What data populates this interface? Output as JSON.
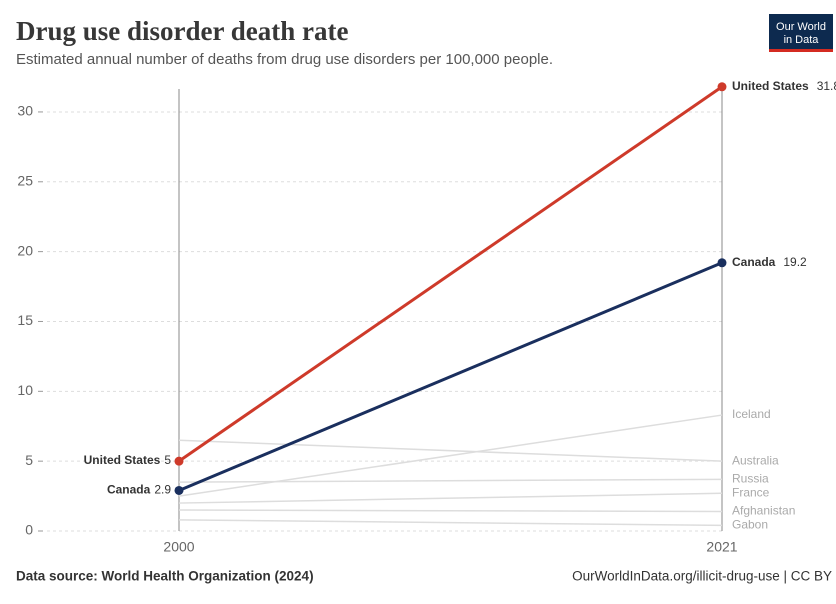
{
  "chart_data": {
    "type": "slope",
    "title": "Drug use disorder death rate",
    "subtitle": "Estimated annual number of deaths from drug use disorders per 100,000 people.",
    "logo": [
      "Our World",
      "in Data"
    ],
    "source": "Data source: World Health Organization (2024)",
    "url": "OurWorldInData.org/illicit-drug-use | CC BY",
    "categories": [
      "2000",
      "2021"
    ],
    "ylim": [
      0,
      32
    ],
    "yticks": [
      0,
      5,
      10,
      15,
      20,
      25,
      30
    ],
    "grid": true,
    "series": [
      {
        "name": "Iceland",
        "color": "#dddddd",
        "values": [
          2.5,
          8.3
        ],
        "highlight": false
      },
      {
        "name": "Australia",
        "color": "#dddddd",
        "values": [
          6.5,
          5.0
        ],
        "highlight": false
      },
      {
        "name": "Russia",
        "color": "#dddddd",
        "values": [
          3.5,
          3.7
        ],
        "highlight": false
      },
      {
        "name": "France",
        "color": "#dddddd",
        "values": [
          2.0,
          2.7
        ],
        "highlight": false
      },
      {
        "name": "Afghanistan",
        "color": "#dddddd",
        "values": [
          1.5,
          1.4
        ],
        "highlight": false
      },
      {
        "name": "Gabon",
        "color": "#dddddd",
        "values": [
          0.8,
          0.4
        ],
        "highlight": false
      },
      {
        "name": "United States",
        "color": "#ce3a2a",
        "values": [
          5,
          31.8
        ],
        "highlight": true
      },
      {
        "name": "Canada",
        "color": "#1a2f5e",
        "values": [
          2.9,
          19.2
        ],
        "highlight": true
      }
    ]
  }
}
